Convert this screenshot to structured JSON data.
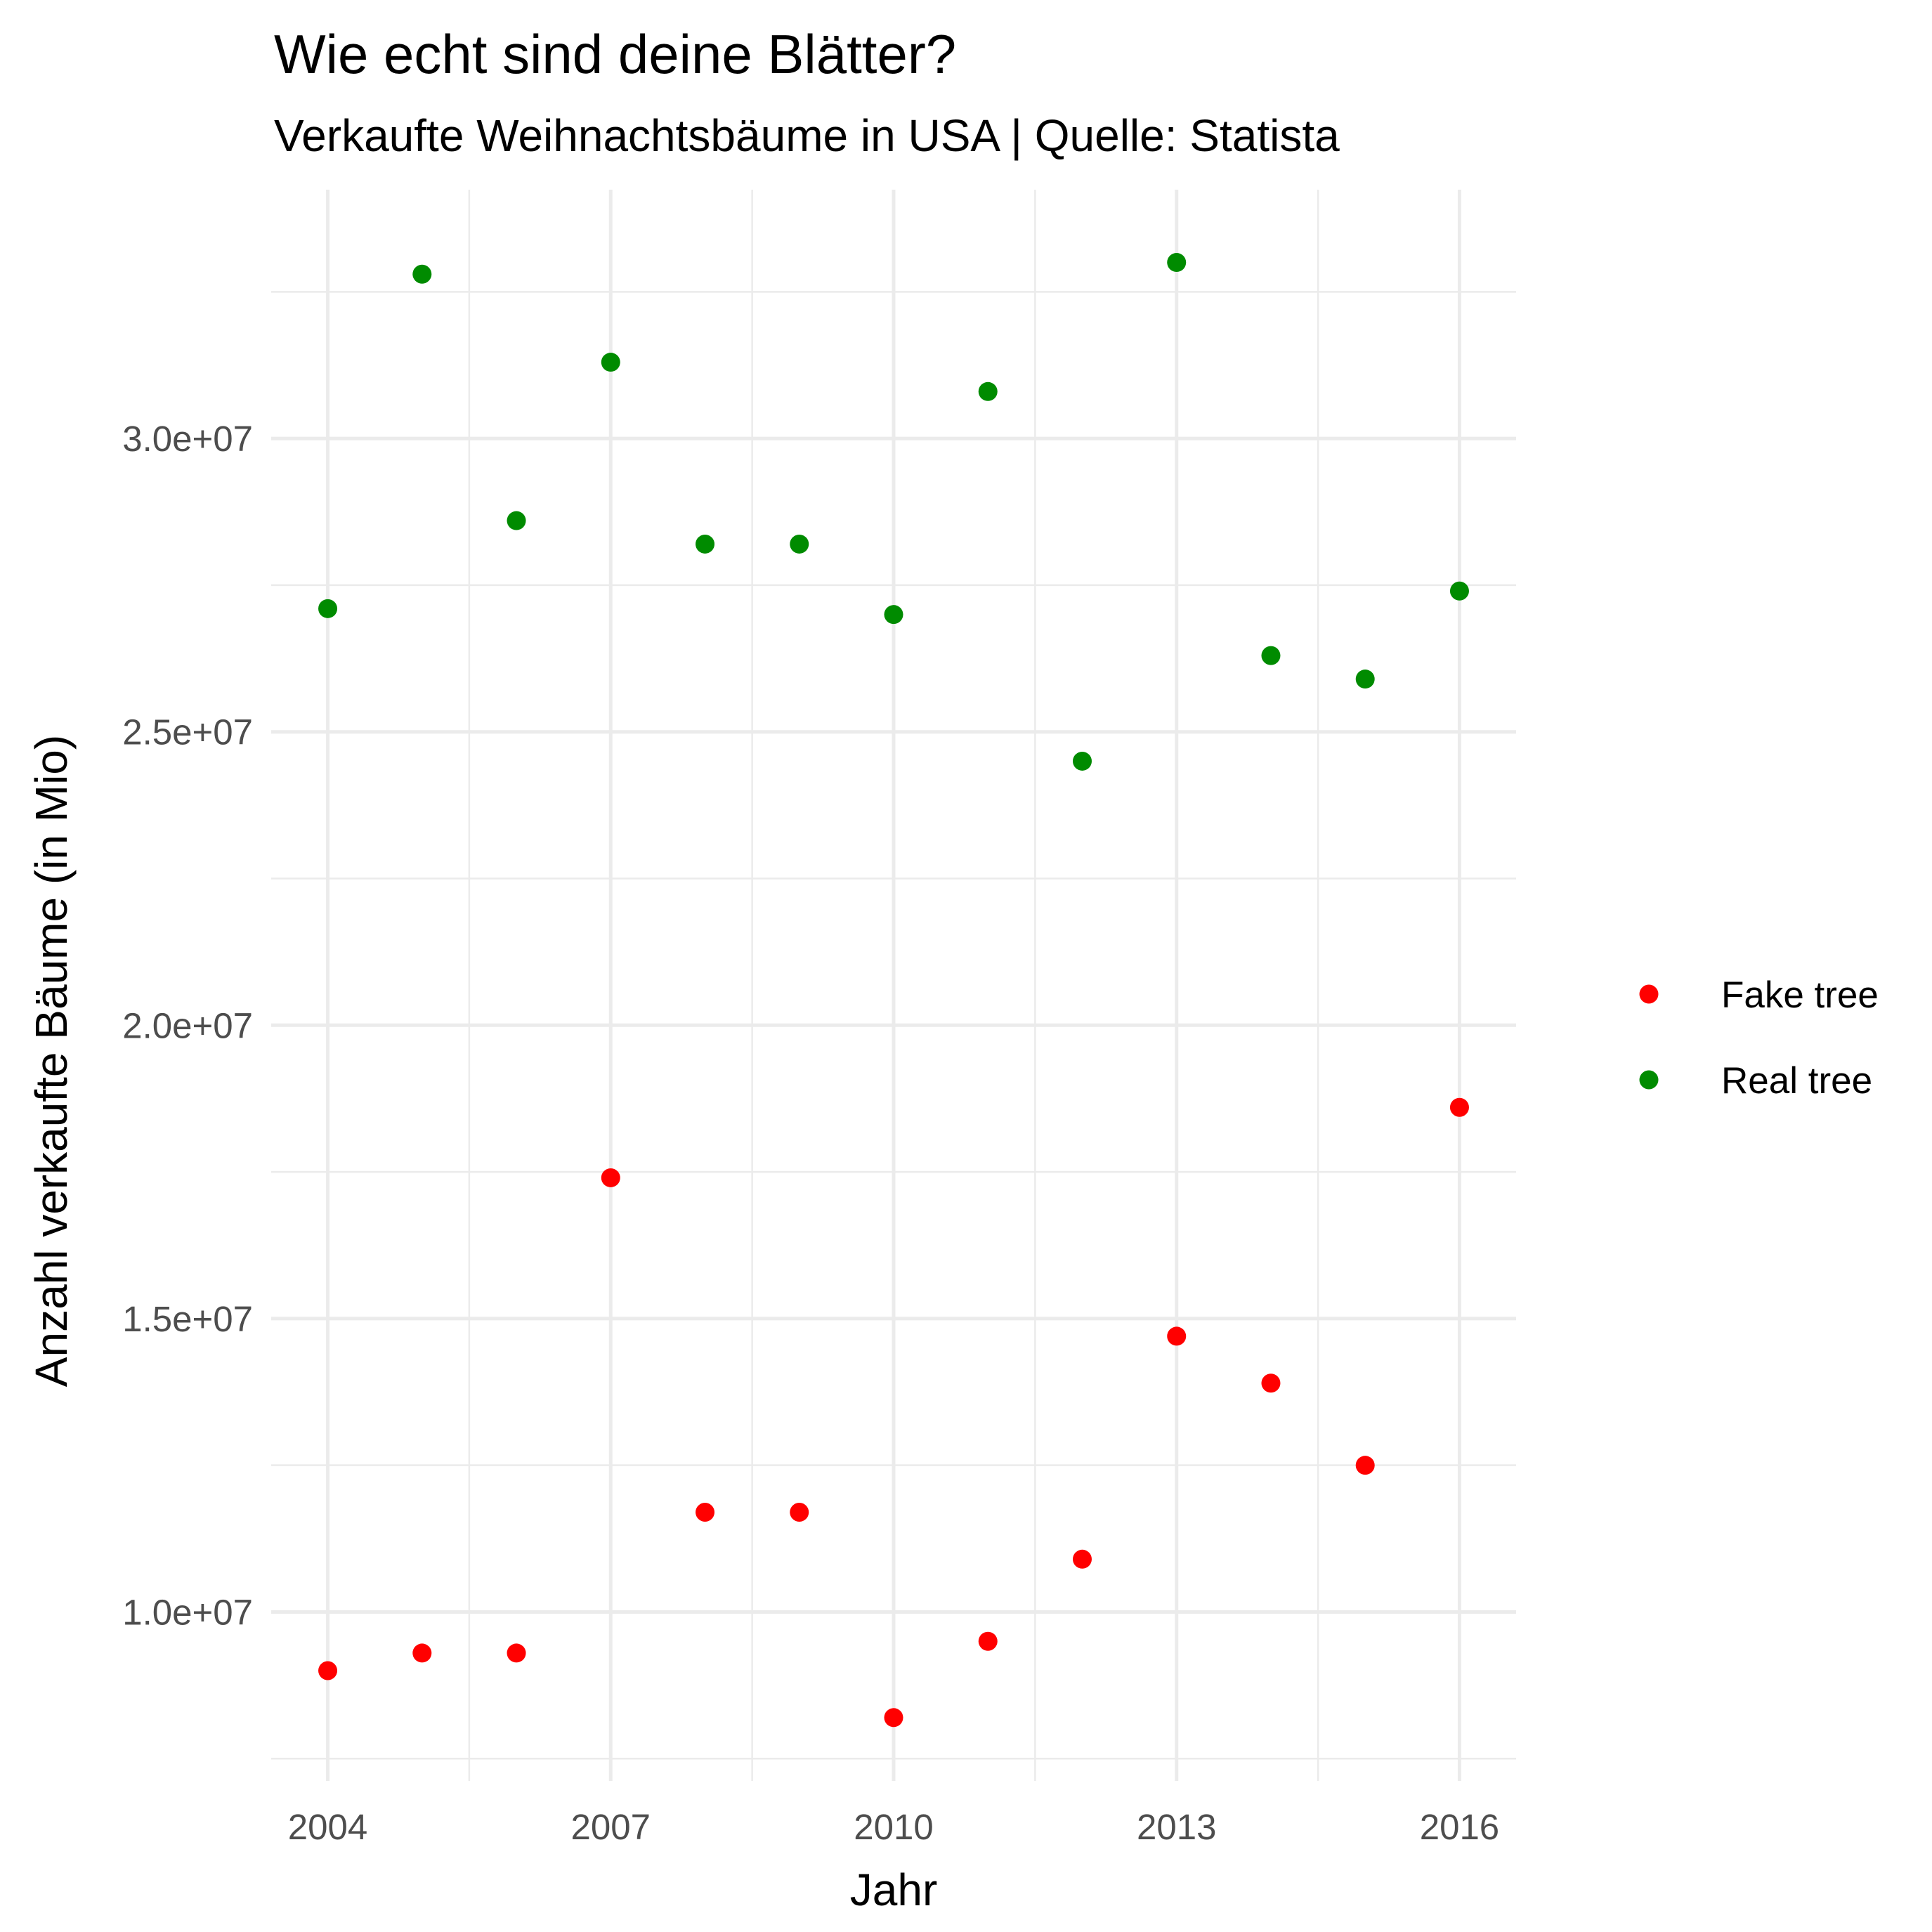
{
  "chart_data": {
    "type": "scatter",
    "title": "Wie echt sind deine Blätter?",
    "subtitle": "Verkaufte Weihnachtsbäume in USA | Quelle: Statista",
    "xlabel": "Jahr",
    "ylabel": "Anzahl verkaufte Bäume (in Mio)",
    "x_ticks": [
      2004,
      2007,
      2010,
      2013,
      2016
    ],
    "y_ticks": [
      {
        "value": 10000000,
        "label": "1.0e+07"
      },
      {
        "value": 15000000,
        "label": "1.5e+07"
      },
      {
        "value": 20000000,
        "label": "2.0e+07"
      },
      {
        "value": 25000000,
        "label": "2.5e+07"
      },
      {
        "value": 30000000,
        "label": "3.0e+07"
      }
    ],
    "xlim": [
      2003.4,
      2016.6
    ],
    "ylim": [
      7120000,
      34240000
    ],
    "grid": true,
    "legend_position": "right",
    "series": [
      {
        "name": "Fake tree",
        "color": "#ff0000",
        "x": [
          2004,
          2005,
          2006,
          2007,
          2008,
          2009,
          2010,
          2011,
          2012,
          2013,
          2014,
          2015,
          2016
        ],
        "values": [
          9000000,
          9300000,
          9300000,
          17400000,
          11700000,
          11700000,
          8200000,
          9500000,
          10900000,
          14700000,
          13900000,
          12500000,
          18600000
        ]
      },
      {
        "name": "Real tree",
        "color": "#008b00",
        "x": [
          2004,
          2005,
          2006,
          2007,
          2008,
          2009,
          2010,
          2011,
          2012,
          2013,
          2014,
          2015,
          2016
        ],
        "values": [
          27100000,
          32800000,
          28600000,
          31300000,
          28200000,
          28200000,
          27000000,
          30800000,
          24500000,
          33000000,
          26300000,
          25900000,
          27400000
        ]
      }
    ]
  }
}
